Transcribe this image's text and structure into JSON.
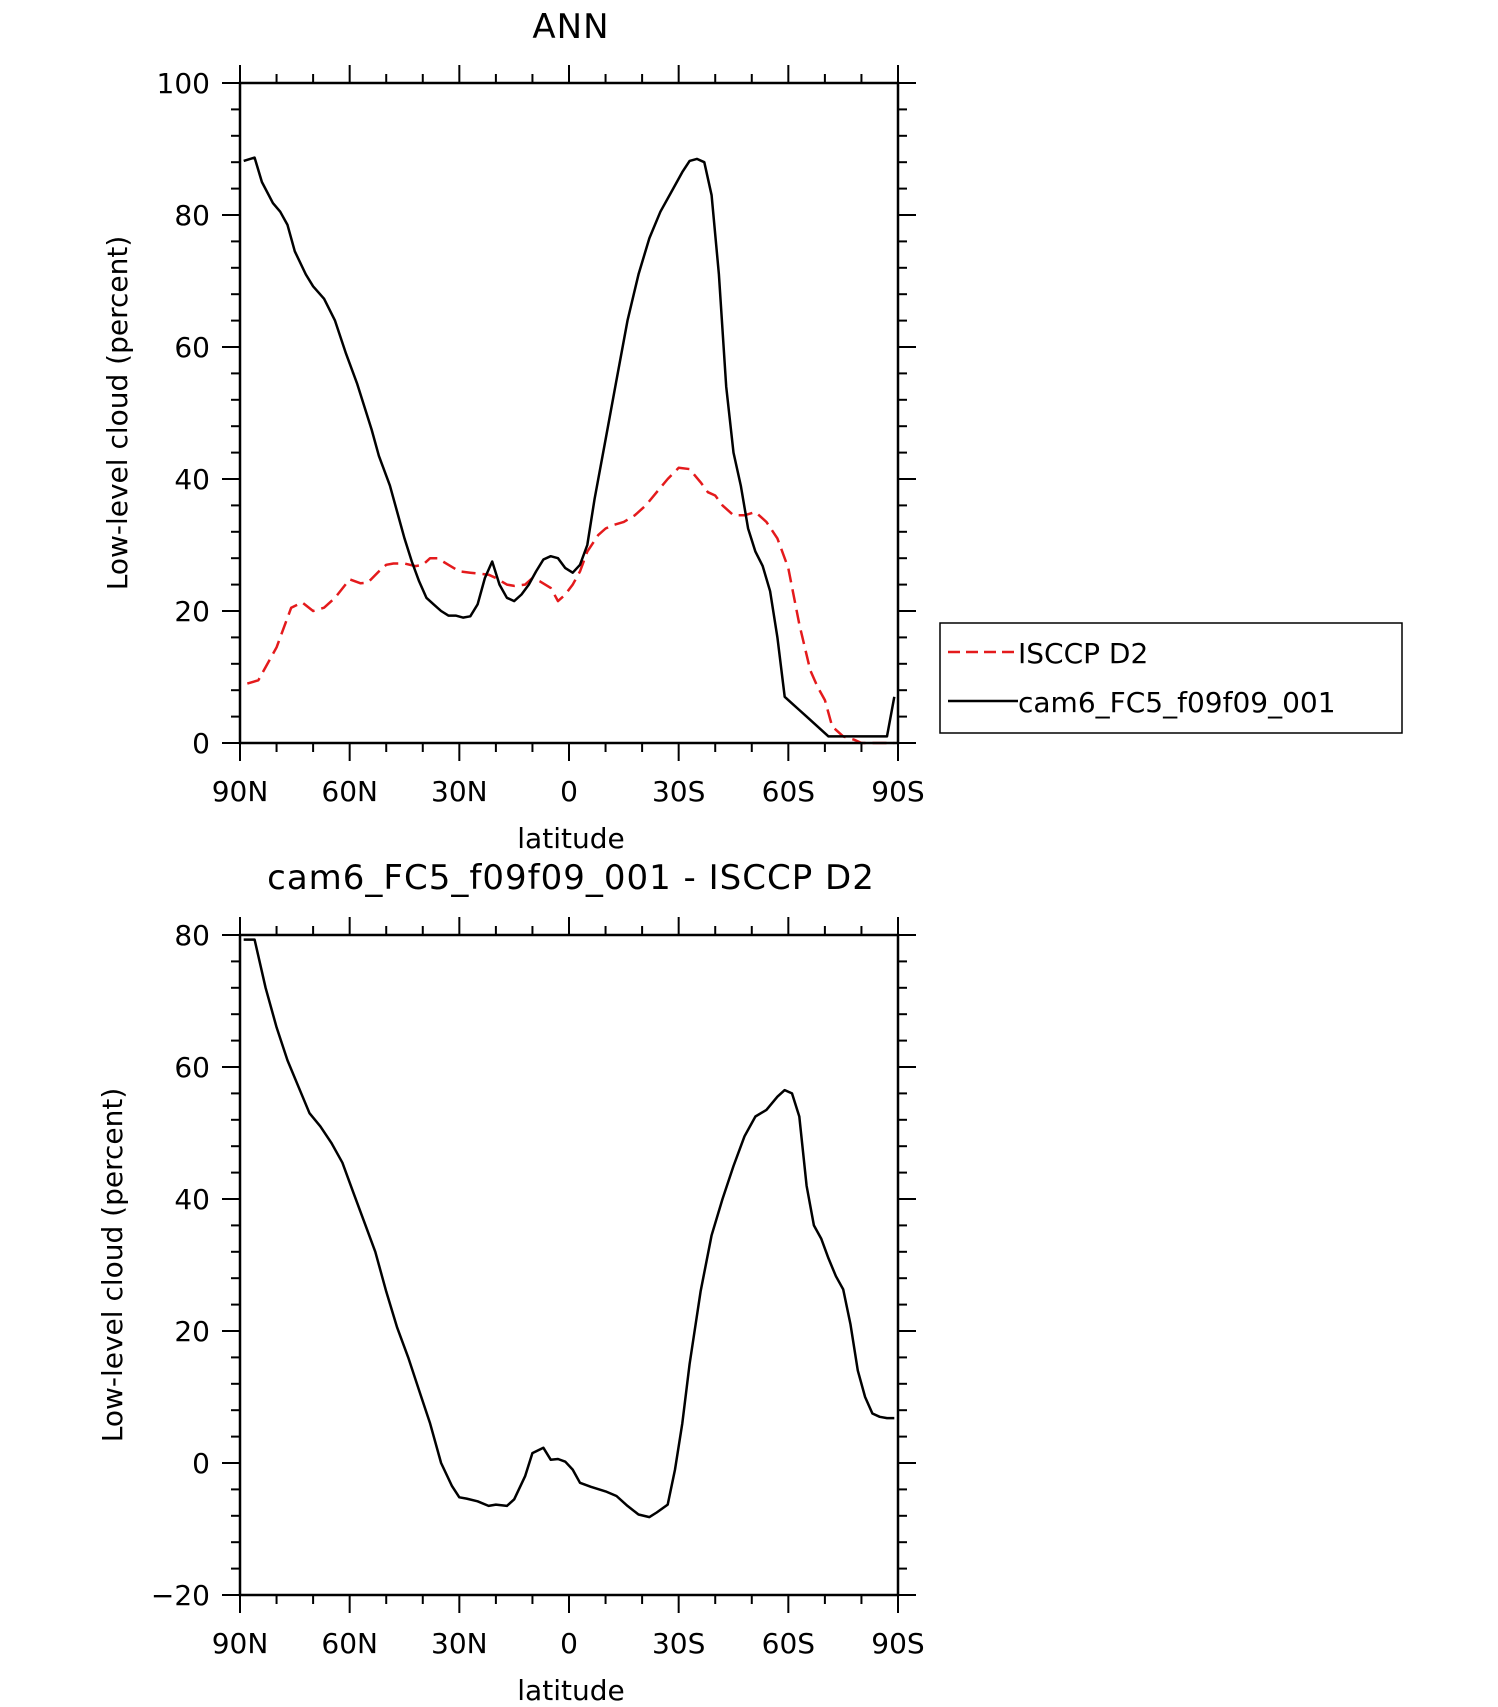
{
  "chart_data": [
    {
      "type": "line",
      "title": "ANN",
      "xlabel": "latitude",
      "ylabel": "Low-level cloud (percent)",
      "xlim": [
        90,
        -90
      ],
      "ylim": [
        0,
        100
      ],
      "xticks": [
        90,
        60,
        30,
        0,
        -30,
        -60,
        -90
      ],
      "xtick_labels": [
        "90N",
        "60N",
        "30N",
        "0",
        "30S",
        "60S",
        "90S"
      ],
      "yticks": [
        0,
        20,
        40,
        60,
        80,
        100
      ],
      "ytick_labels": [
        "0",
        "20",
        "40",
        "60",
        "80",
        "100"
      ],
      "legend_position": "right",
      "series": [
        {
          "name": "ISCCP D2",
          "color": "#e41a1c",
          "style": "dashed",
          "x": [
            88,
            85,
            80,
            76,
            73,
            70,
            67,
            64,
            60,
            57,
            55,
            52,
            50,
            48,
            45,
            42,
            40,
            38,
            36,
            33,
            30,
            27,
            25,
            22,
            20,
            17,
            15,
            12,
            10,
            8,
            5,
            3,
            1,
            -1,
            -3,
            -5,
            -8,
            -10,
            -12,
            -15,
            -18,
            -21,
            -24,
            -27,
            -30,
            -33,
            -36,
            -38,
            -40,
            -42,
            -45,
            -48,
            -51,
            -54,
            -57,
            -60,
            -63,
            -66,
            -68,
            -70,
            -72,
            -75,
            -78,
            -80,
            -83,
            -86,
            -89
          ],
          "y": [
            9,
            9.5,
            14.5,
            20.5,
            21.3,
            20,
            20.5,
            22,
            24.8,
            24.2,
            24.3,
            26,
            27,
            27.2,
            27.2,
            26.8,
            27,
            28,
            28,
            27,
            26,
            25.8,
            25.7,
            25.5,
            25,
            24,
            23.8,
            24,
            25,
            24.5,
            23.5,
            21.5,
            22.5,
            24,
            26,
            29,
            31.5,
            32.5,
            33,
            33.5,
            34.5,
            36,
            38,
            40,
            41.7,
            41.5,
            39.5,
            38,
            37.5,
            36,
            34.5,
            34.5,
            35,
            33.5,
            31,
            26.5,
            18,
            11,
            8.5,
            6.5,
            2.5,
            1,
            0.5,
            0,
            0,
            0,
            0
          ]
        },
        {
          "name": "cam6_FC5_f09f09_001",
          "color": "#000000",
          "style": "solid",
          "x": [
            89,
            86,
            84,
            81,
            79,
            77,
            75,
            72,
            70,
            67,
            64,
            61,
            58,
            56,
            54,
            52,
            49,
            47,
            45,
            43,
            41,
            39,
            37,
            35,
            33,
            31,
            29,
            27,
            25,
            23,
            21,
            19,
            17,
            15,
            13,
            11,
            9,
            7,
            5,
            3,
            1,
            -1,
            -3,
            -5,
            -7,
            -10,
            -13,
            -16,
            -19,
            -22,
            -25,
            -28,
            -31,
            -33,
            -35,
            -37,
            -39,
            -41,
            -43,
            -45,
            -47,
            -49,
            -51,
            -53,
            -55,
            -57,
            -59,
            -61,
            -63,
            -65,
            -67,
            -69,
            -71,
            -73,
            -75,
            -77,
            -79,
            -81,
            -83,
            -85,
            -87,
            -89
          ],
          "y": [
            88.2,
            88.7,
            85,
            81.8,
            80.5,
            78.5,
            74.5,
            71,
            69.2,
            67.3,
            64,
            59,
            54.5,
            51,
            47.5,
            43.5,
            39,
            35,
            31,
            27.5,
            24.5,
            22,
            21,
            20,
            19.3,
            19.3,
            19,
            19.2,
            21,
            25,
            27.5,
            24,
            22,
            21.5,
            22.5,
            24,
            26,
            27.8,
            28.3,
            28,
            26.5,
            25.8,
            27,
            30,
            37,
            46,
            55,
            64,
            71,
            76.5,
            80.5,
            83.5,
            86.5,
            88.2,
            88.5,
            88,
            83,
            71,
            54,
            44,
            39,
            32.5,
            29,
            26.8,
            23,
            16,
            7,
            6,
            5,
            4,
            3,
            2,
            1,
            1,
            1,
            1,
            1,
            1,
            1,
            1,
            1,
            7
          ]
        }
      ]
    },
    {
      "type": "line",
      "title": "cam6_FC5_f09f09_001 - ISCCP D2",
      "xlabel": "latitude",
      "ylabel": "Low-level cloud (percent)",
      "xlim": [
        90,
        -90
      ],
      "ylim": [
        -20,
        80
      ],
      "xticks": [
        90,
        60,
        30,
        0,
        -30,
        -60,
        -90
      ],
      "xtick_labels": [
        "90N",
        "60N",
        "30N",
        "0",
        "30S",
        "60S",
        "90S"
      ],
      "yticks": [
        -20,
        0,
        20,
        40,
        60,
        80
      ],
      "ytick_labels": [
        "−20",
        "0",
        "20",
        "40",
        "60",
        "80"
      ],
      "series": [
        {
          "color": "#000000",
          "style": "solid",
          "x": [
            89,
            86,
            83,
            80,
            77,
            74,
            71,
            68,
            65,
            62,
            59,
            56,
            53,
            50,
            47,
            44,
            41,
            38,
            35,
            32,
            30,
            28,
            25,
            22,
            20,
            17,
            15,
            12,
            10,
            7,
            5,
            3,
            1,
            -1,
            -3,
            -6,
            -10,
            -13,
            -16,
            -19,
            -22,
            -24,
            -27,
            -29,
            -31,
            -33,
            -36,
            -39,
            -42,
            -45,
            -48,
            -51,
            -54,
            -57,
            -59,
            -61,
            -63,
            -65,
            -67,
            -69,
            -71,
            -73,
            -75,
            -77,
            -79,
            -81,
            -83,
            -85,
            -87,
            -89
          ],
          "y": [
            79.3,
            79.3,
            72,
            66,
            61,
            57,
            53,
            51,
            48.5,
            45.5,
            41,
            36.5,
            32,
            26,
            20.5,
            16,
            11,
            6,
            0,
            -3.5,
            -5.2,
            -5.4,
            -5.8,
            -6.5,
            -6.3,
            -6.5,
            -5.5,
            -2,
            1.5,
            2.3,
            0.5,
            0.6,
            0.2,
            -1,
            -3,
            -3.6,
            -4.3,
            -5,
            -6.5,
            -7.8,
            -8.2,
            -7.5,
            -6.3,
            -1,
            6,
            15,
            26,
            34.5,
            40,
            45,
            49.5,
            52.5,
            53.5,
            55.5,
            56.5,
            56,
            52.5,
            42,
            36,
            34,
            31,
            28.3,
            26.3,
            21,
            14,
            10,
            7.5,
            7,
            6.8,
            6.8
          ]
        }
      ]
    }
  ]
}
